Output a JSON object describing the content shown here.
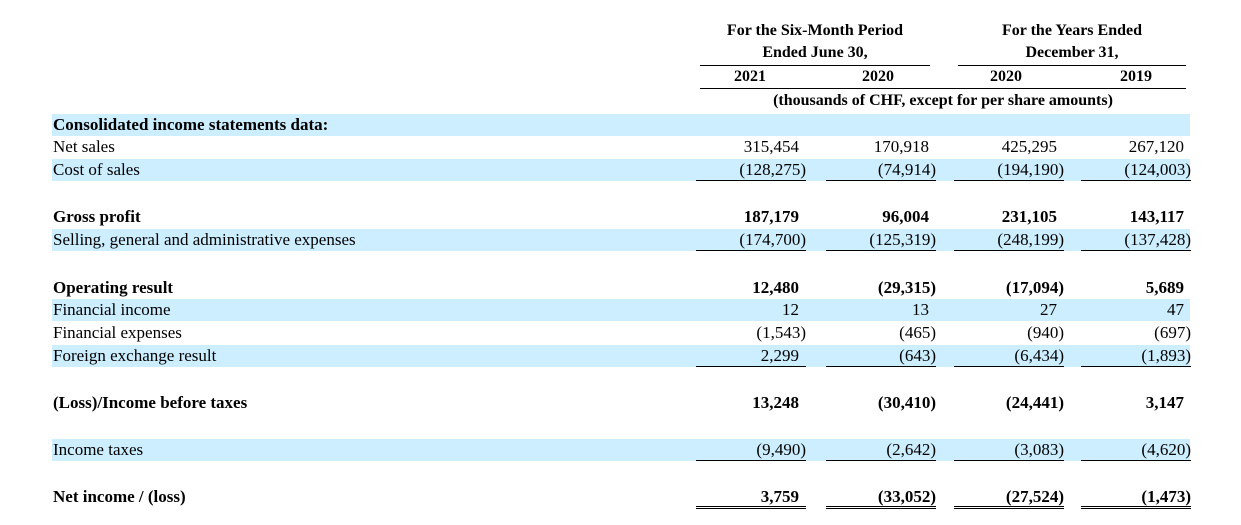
{
  "header": {
    "period1_line1": "For the Six-Month Period",
    "period1_line2": "Ended June 30,",
    "period2_line1": "For the Years Ended",
    "period2_line2": "December 31,",
    "years": [
      "2021",
      "2020",
      "2020",
      "2019"
    ],
    "units": "(thousands of CHF, except for per share amounts)"
  },
  "rows": [
    {
      "label": "Consolidated income statements data:",
      "bold": true,
      "band": true,
      "values": []
    },
    {
      "label": "Net sales",
      "values": [
        "315,454",
        "170,918",
        "425,295",
        "267,120"
      ]
    },
    {
      "label": "Cost of sales",
      "band": true,
      "values": [
        "(128,275)",
        "(74,914)",
        "(194,190)",
        "(124,003)"
      ]
    },
    {
      "label": "Gross profit",
      "bold": true,
      "values": [
        "187,179",
        "96,004",
        "231,105",
        "143,117"
      ]
    },
    {
      "label": "Selling, general and administrative expenses",
      "band": true,
      "values": [
        "(174,700)",
        "(125,319)",
        "(248,199)",
        "(137,428)"
      ]
    },
    {
      "label": "Operating result",
      "bold": true,
      "values": [
        "12,480",
        "(29,315)",
        "(17,094)",
        "5,689"
      ]
    },
    {
      "label": "Financial income",
      "band": true,
      "values": [
        "12",
        "13",
        "27",
        "47"
      ]
    },
    {
      "label": "Financial expenses",
      "values": [
        "(1,543)",
        "(465)",
        "(940)",
        "(697)"
      ]
    },
    {
      "label": "Foreign exchange result",
      "band": true,
      "values": [
        "2,299",
        "(643)",
        "(6,434)",
        "(1,893)"
      ]
    },
    {
      "label": "(Loss)/Income before taxes",
      "bold": true,
      "values": [
        "13,248",
        "(30,410)",
        "(24,441)",
        "3,147"
      ]
    },
    {
      "label": "Income taxes",
      "band": true,
      "values": [
        "(9,490)",
        "(2,642)",
        "(3,083)",
        "(4,620)"
      ]
    },
    {
      "label": "Net income / (loss)",
      "bold": true,
      "values": [
        "3,759",
        "(33,052)",
        "(27,524)",
        "(1,473)"
      ]
    }
  ]
}
